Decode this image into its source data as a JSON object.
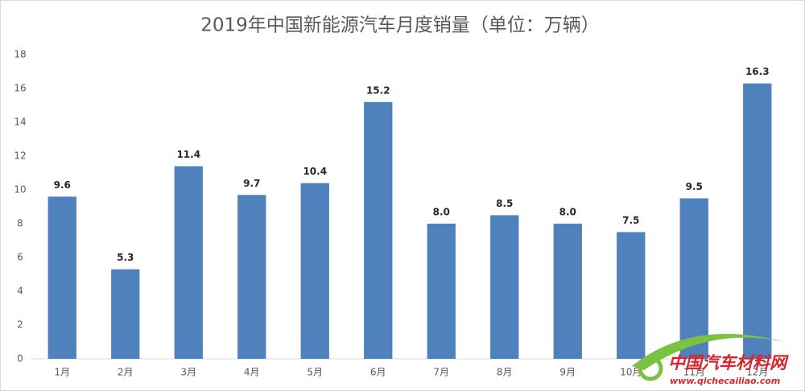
{
  "chart_data": {
    "type": "bar",
    "title": "2019年中国新能源汽车月度销量（单位：万辆）",
    "categories": [
      "1月",
      "2月",
      "3月",
      "4月",
      "5月",
      "6月",
      "7月",
      "8月",
      "9月",
      "10月",
      "11月",
      "12月"
    ],
    "values": [
      9.6,
      5.3,
      11.4,
      9.7,
      10.4,
      15.2,
      8.0,
      8.5,
      8.0,
      7.5,
      9.5,
      16.3
    ],
    "value_labels": [
      "9.6",
      "5.3",
      "11.4",
      "9.7",
      "10.4",
      "15.2",
      "8.0",
      "8.5",
      "8.0",
      "7.5",
      "9.5",
      "16.3"
    ],
    "color": "#4f81bd",
    "ylim": [
      0,
      18
    ],
    "yticks": [
      0,
      2,
      4,
      6,
      8,
      10,
      12,
      14,
      16,
      18
    ],
    "grid": false
  },
  "watermark": {
    "name": "中国汽车材料网",
    "url": "www.qichecailiao.com"
  }
}
